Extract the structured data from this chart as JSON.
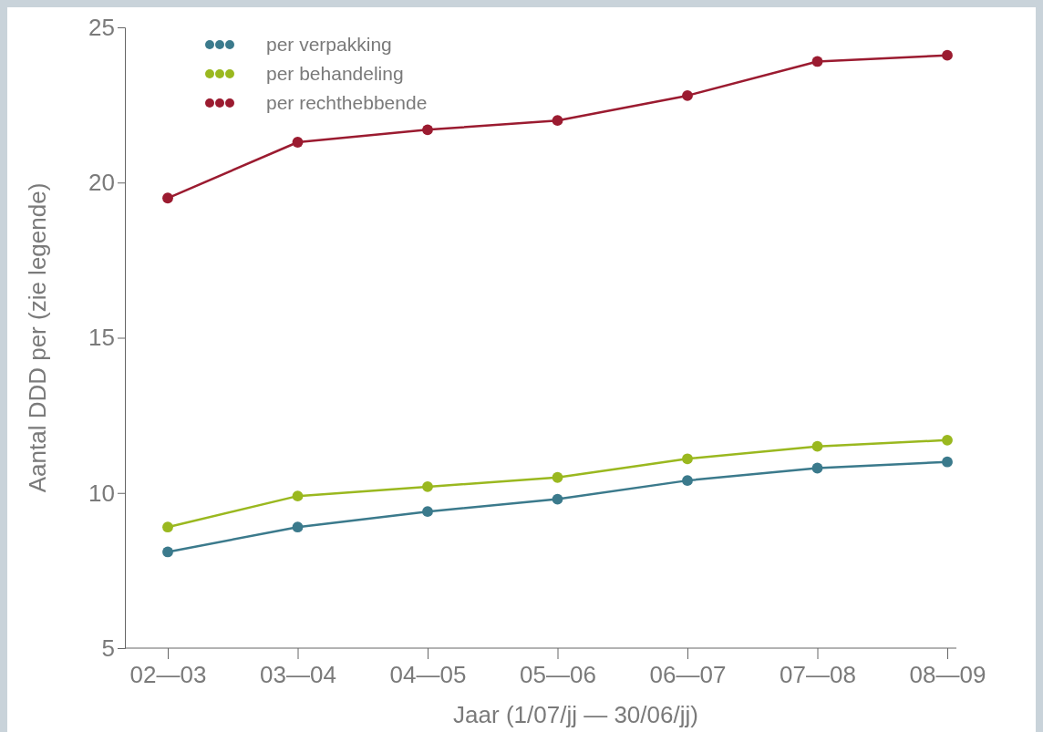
{
  "chart_data": {
    "type": "line",
    "xlabel": "Jaar (1/07/jj — 30/06/jj)",
    "ylabel": "Aantal DDD per (zie legende)",
    "categories": [
      "02—03",
      "03—04",
      "04—05",
      "05—06",
      "06—07",
      "07—08",
      "08—09"
    ],
    "ylim": [
      5,
      25
    ],
    "yticks": [
      5,
      10,
      15,
      20,
      25
    ],
    "grid": false,
    "legend": "top left",
    "marker": "circle",
    "line_style": "solid",
    "series": [
      {
        "name": "per verpakking",
        "color": "#3b7a8c",
        "values": [
          8.1,
          8.9,
          9.4,
          9.8,
          10.4,
          10.8,
          11.0
        ]
      },
      {
        "name": "per behandeling",
        "color": "#9ab81f",
        "values": [
          8.9,
          9.9,
          10.2,
          10.5,
          11.1,
          11.5,
          11.7
        ]
      },
      {
        "name": "per rechthebbende",
        "color": "#9b1b30",
        "values": [
          19.5,
          21.3,
          21.7,
          22.0,
          22.8,
          23.9,
          24.1
        ]
      }
    ]
  }
}
